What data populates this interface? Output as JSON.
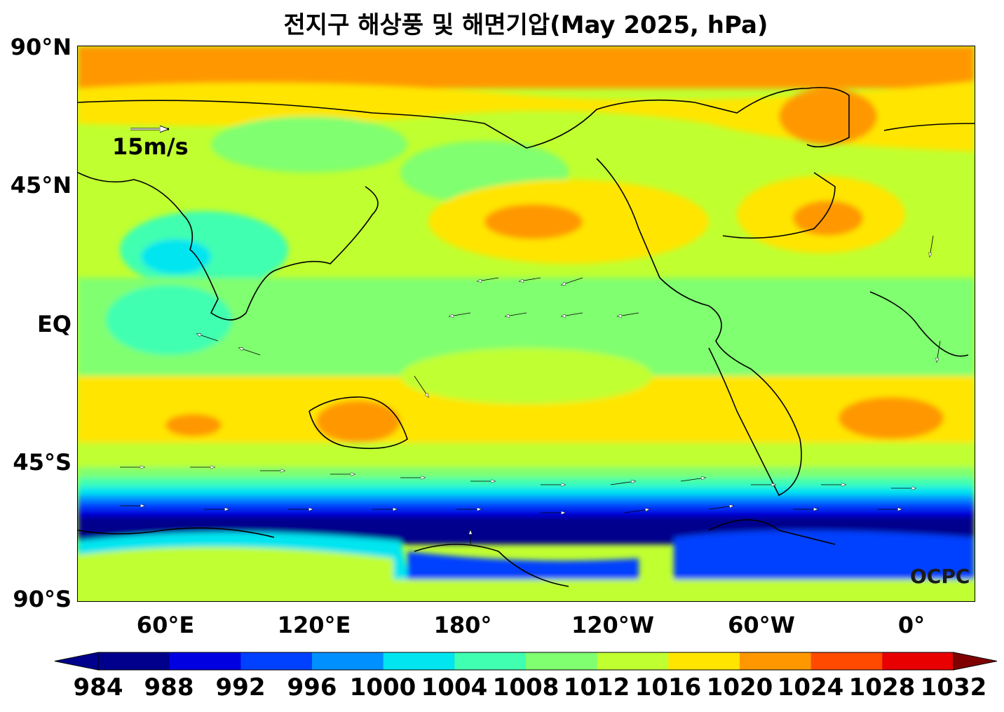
{
  "title": "전지구 해상풍 및 해면기압(May 2025, hPa)",
  "lat_labels": [
    "90°N",
    "45°N",
    "EQ",
    "45°S",
    "90°S"
  ],
  "lon_labels": [
    "60°E",
    "120°E",
    "180°",
    "120°W",
    "60°W",
    "0°"
  ],
  "reference_vector": {
    "label": "15m/s"
  },
  "watermark": "OCPC",
  "colorbar": {
    "levels": [
      "984",
      "988",
      "992",
      "996",
      "1000",
      "1004",
      "1008",
      "1012",
      "1016",
      "1020",
      "1024",
      "1028",
      "1032"
    ],
    "colors": [
      "#00008c",
      "#0000e0",
      "#0040ff",
      "#0090ff",
      "#00e5ef",
      "#40ffb0",
      "#80ff70",
      "#c0ff30",
      "#ffe500",
      "#ff9800",
      "#ff4a00",
      "#e80000",
      "#800000"
    ]
  }
}
